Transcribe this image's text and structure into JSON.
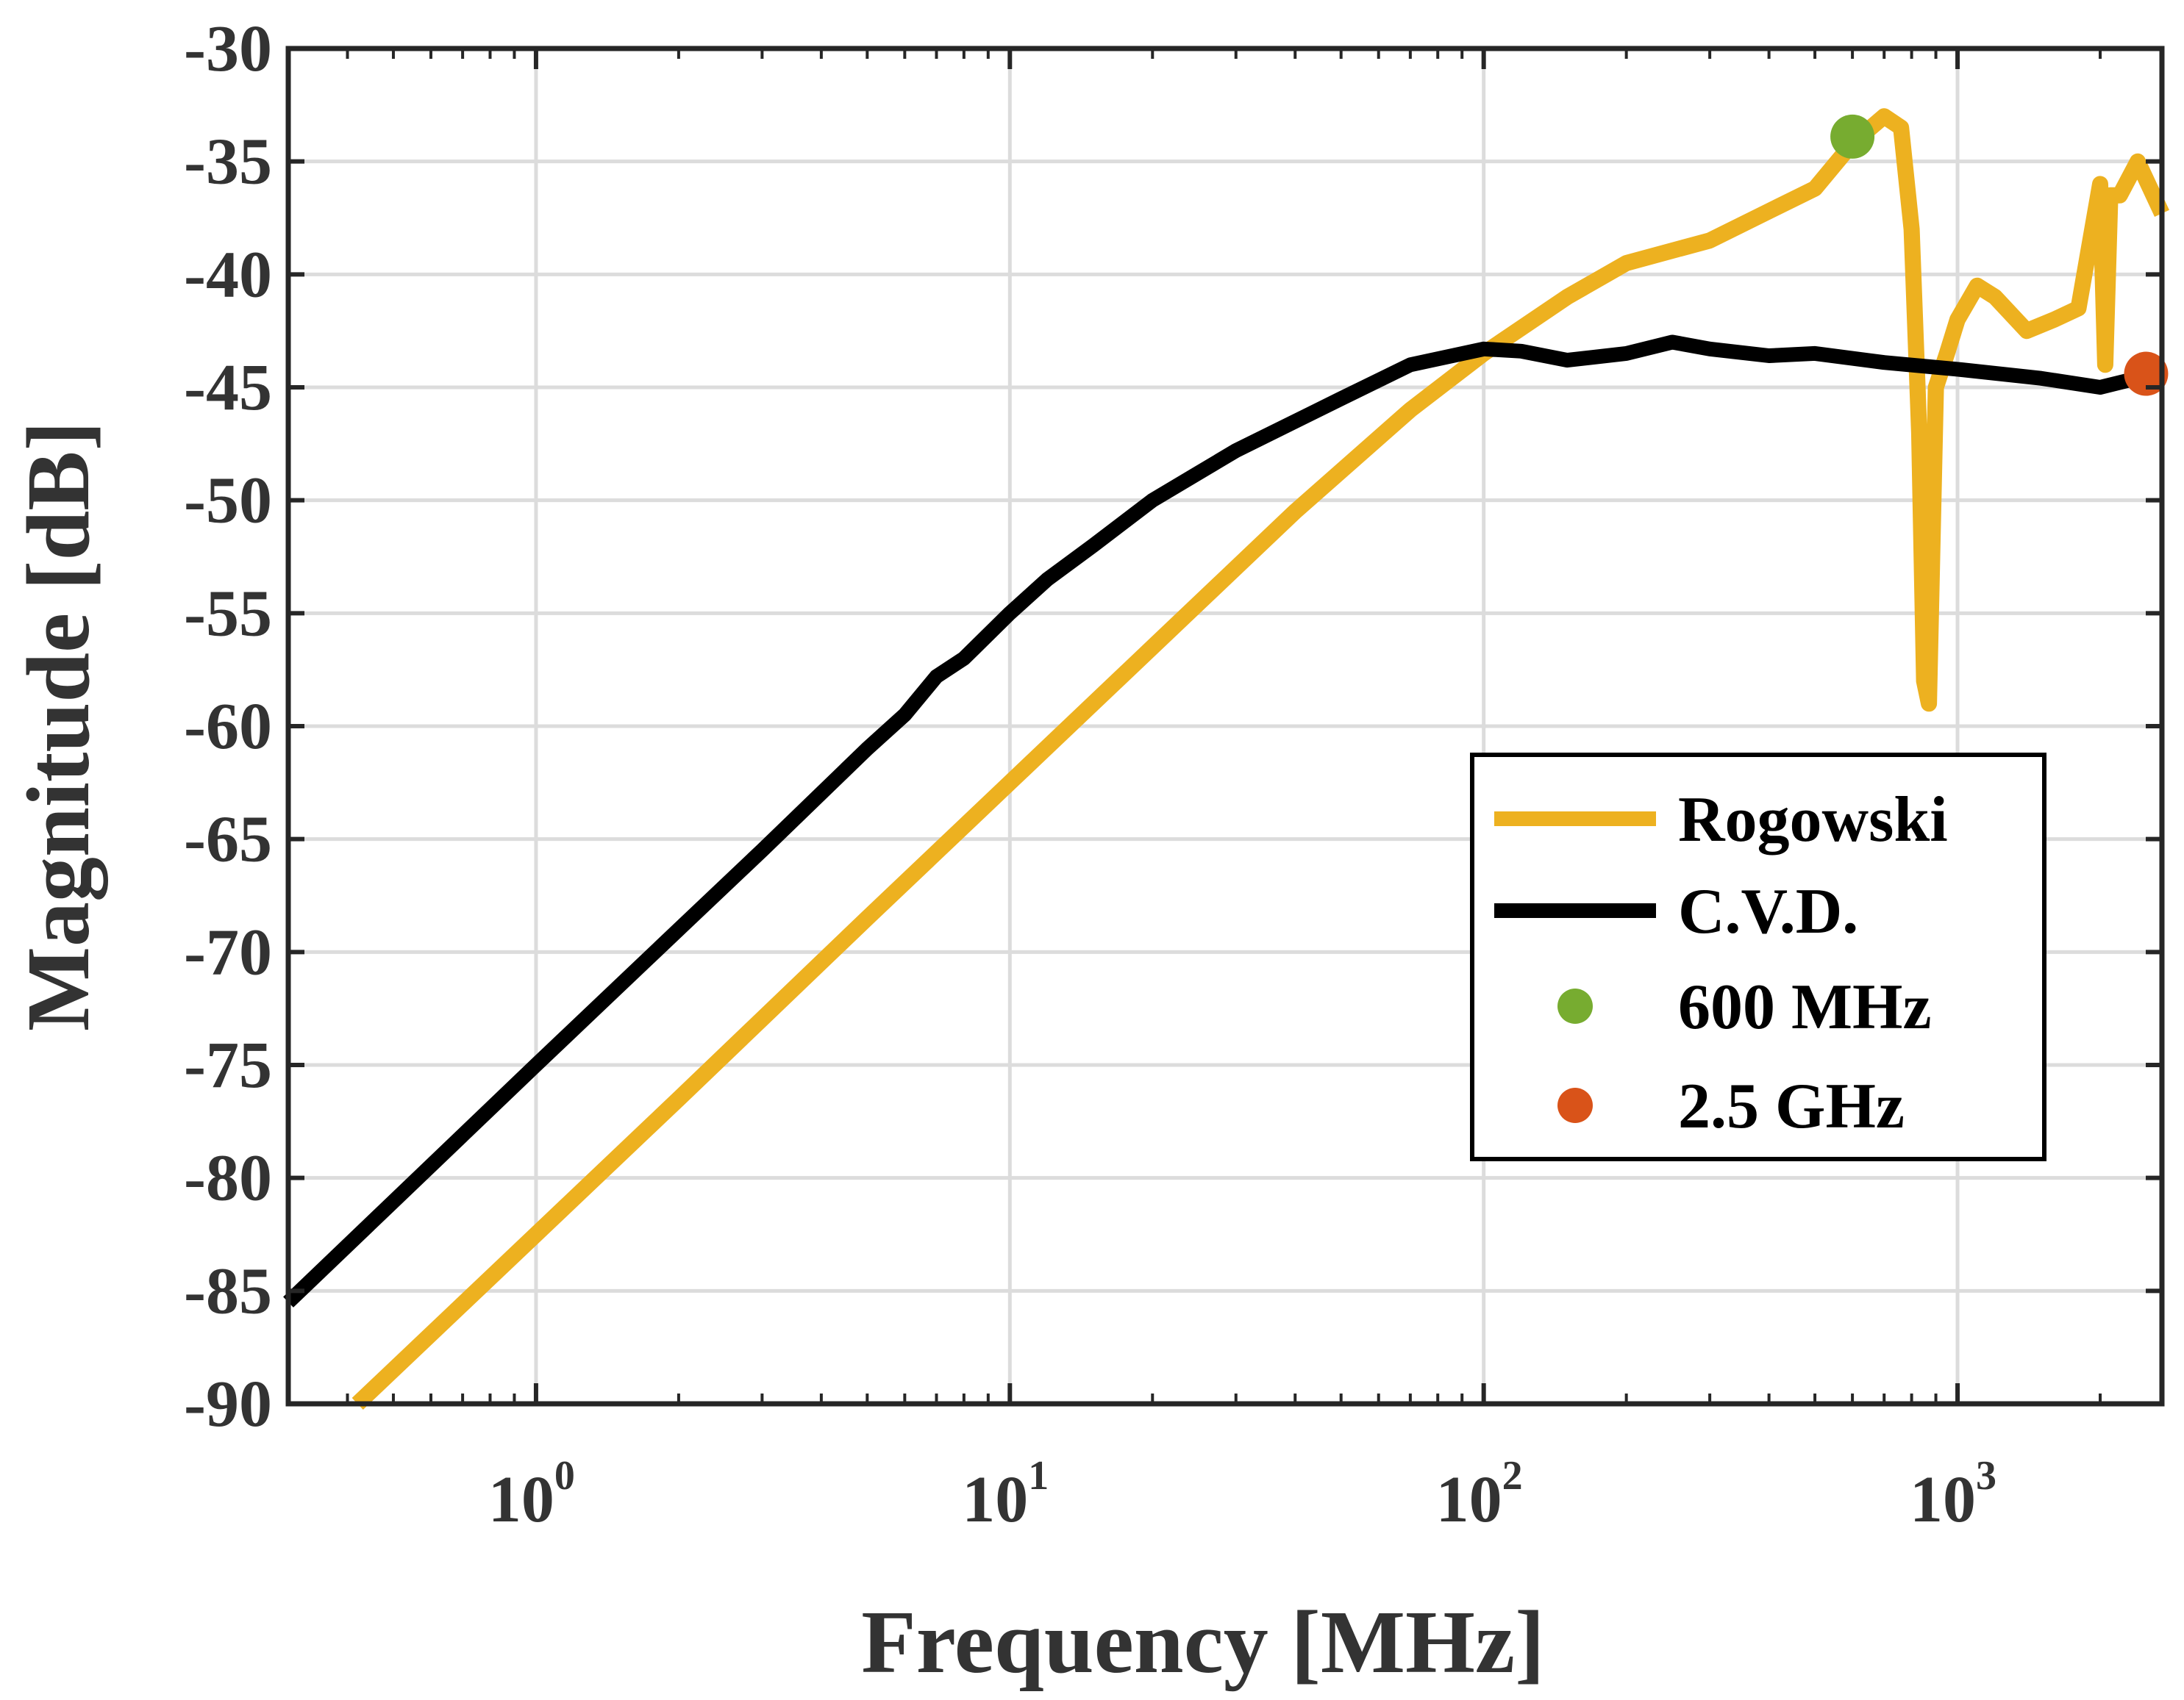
{
  "chart_data": {
    "type": "line",
    "xscale": "log",
    "xlabel": "Frequency [MHz]",
    "ylabel": "Magnitude [dB]",
    "xlim": [
      0.3,
      2700
    ],
    "ylim": [
      -90,
      -30
    ],
    "grid": true,
    "xticks": [
      {
        "value": 1,
        "base": "10",
        "exp": "0"
      },
      {
        "value": 10,
        "base": "10",
        "exp": "1"
      },
      {
        "value": 100,
        "base": "10",
        "exp": "2"
      },
      {
        "value": 1000,
        "base": "10",
        "exp": "3"
      }
    ],
    "yticks": [
      -30,
      -35,
      -40,
      -45,
      -50,
      -55,
      -60,
      -65,
      -70,
      -75,
      -80,
      -85,
      -90
    ],
    "yticklabels": [
      "-30",
      "-35",
      "-40",
      "-45",
      "-50",
      "-55",
      "-60",
      "-65",
      "-70",
      "-75",
      "-80",
      "-85",
      "-90"
    ],
    "legend_position": "center-right",
    "series": [
      {
        "name": "Rogowski",
        "color": "#EDB120",
        "x": [
          0.42,
          1,
          2,
          5,
          10,
          20,
          40,
          70,
          100,
          150,
          200,
          300,
          400,
          500,
          600,
          700,
          760,
          800,
          830,
          850,
          870,
          900,
          950,
          1000,
          1100,
          1200,
          1400,
          1600,
          1800,
          2000,
          2050,
          2100,
          2200,
          2400,
          2700
        ],
        "y": [
          -90,
          -82.5,
          -76.5,
          -68.5,
          -62.5,
          -56.5,
          -50.5,
          -46,
          -43.5,
          -41,
          -39.5,
          -38.5,
          -37.2,
          -36.2,
          -34.2,
          -33,
          -33.5,
          -38,
          -47,
          -58,
          -59,
          -45,
          -43.5,
          -42,
          -40.5,
          -41,
          -42.5,
          -42,
          -41.5,
          -36,
          -44,
          -36.5,
          -36.5,
          -35,
          -37.3
        ]
      },
      {
        "name": "C.V.D.",
        "color": "#000000",
        "x": [
          0.3,
          1,
          2,
          3,
          5,
          6,
          7,
          8,
          10,
          12,
          15,
          20,
          30,
          50,
          70,
          100,
          120,
          150,
          200,
          250,
          300,
          400,
          500,
          700,
          1000,
          1500,
          2000,
          2500
        ],
        "y": [
          -85.5,
          -75,
          -69,
          -65.5,
          -61,
          -59.5,
          -57.8,
          -57,
          -55,
          -53.5,
          -52,
          -50,
          -47.8,
          -45.5,
          -44,
          -43.3,
          -43.4,
          -43.8,
          -43.5,
          -43,
          -43.3,
          -43.6,
          -43.5,
          -43.9,
          -44.2,
          -44.6,
          -45,
          -44.5
        ]
      }
    ],
    "markers": [
      {
        "name": "600 MHz",
        "color": "#77AC30",
        "x": 600,
        "y": -33.9
      },
      {
        "name": "2.5 GHz",
        "color": "#D95319",
        "x": 2500,
        "y": -44.4
      }
    ]
  }
}
